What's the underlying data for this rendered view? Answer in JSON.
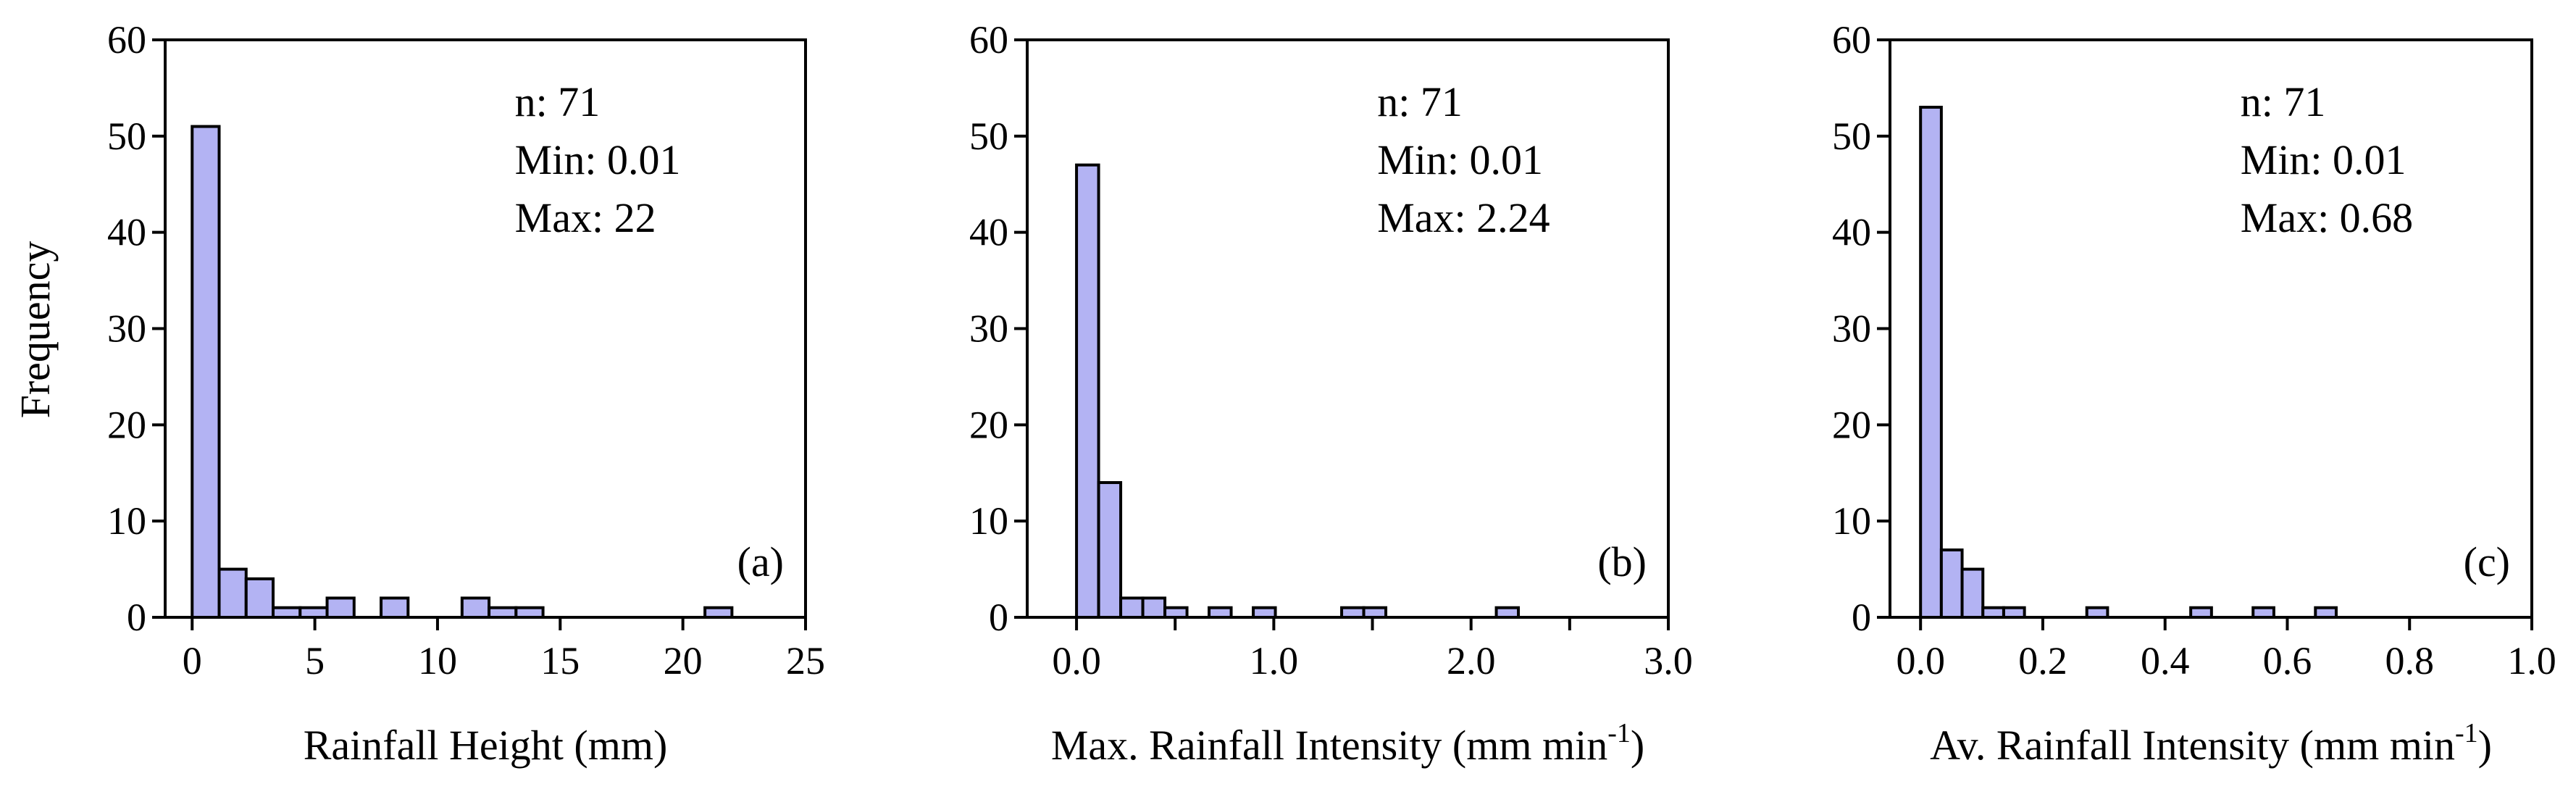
{
  "colors": {
    "bar_fill": "#b3b3f3",
    "bar_stroke": "#000000",
    "axis": "#000000"
  },
  "shared_ylabel": "Frequency",
  "chart_data": [
    {
      "type": "bar",
      "panel_label": "(a)",
      "xlabel": "Rainfall Height (mm)",
      "xlabel_superscript": "",
      "xlabel_suffix": "",
      "ylabel": "Frequency",
      "xlim": [
        -1.1,
        25
      ],
      "ylim": [
        0,
        60
      ],
      "xticks": [
        0,
        5,
        10,
        15,
        20,
        25
      ],
      "xtick_labels": [
        "0",
        "5",
        "10",
        "15",
        "20",
        "25"
      ],
      "yticks": [
        0,
        10,
        20,
        30,
        40,
        50,
        60
      ],
      "ytick_labels": [
        "0",
        "10",
        "20",
        "30",
        "40",
        "50",
        "60"
      ],
      "bin_width": 1.1,
      "bin_starts": [
        0,
        1.1,
        2.2,
        3.3,
        4.4,
        5.5,
        6.6,
        7.7,
        8.8,
        9.9,
        11.0,
        12.1,
        13.2,
        14.3,
        15.4,
        16.5,
        17.6,
        18.7,
        19.8,
        20.9
      ],
      "values": [
        51,
        5,
        4,
        1,
        1,
        2,
        0,
        2,
        0,
        0,
        2,
        1,
        1,
        0,
        0,
        0,
        0,
        0,
        0,
        1
      ],
      "stats": {
        "n": "n: 71",
        "min": "Min: 0.01",
        "max": "Max: 22"
      }
    },
    {
      "type": "bar",
      "panel_label": "(b)",
      "xlabel": "Max. Rainfall Intensity (mm min",
      "xlabel_superscript": "-1",
      "xlabel_suffix": ")",
      "ylabel": "",
      "xlim": [
        -0.25,
        3.0
      ],
      "ylim": [
        0,
        60
      ],
      "xticks": [
        0.0,
        1.0,
        2.0,
        3.0
      ],
      "xtick_labels": [
        "0.0",
        "1.0",
        "2.0",
        "3.0"
      ],
      "minor_xticks": [
        0.5,
        1.5,
        2.5
      ],
      "yticks": [
        0,
        10,
        20,
        30,
        40,
        50,
        60
      ],
      "ytick_labels": [
        "0",
        "10",
        "20",
        "30",
        "40",
        "50",
        "60"
      ],
      "bin_width": 0.112,
      "bin_starts": [
        0.0,
        0.112,
        0.224,
        0.336,
        0.448,
        0.56,
        0.672,
        0.784,
        0.896,
        1.008,
        1.12,
        1.232,
        1.344,
        1.456,
        1.568,
        1.68,
        1.792,
        1.904,
        2.016,
        2.128
      ],
      "values": [
        47,
        14,
        2,
        2,
        1,
        0,
        1,
        0,
        1,
        0,
        0,
        0,
        1,
        1,
        0,
        0,
        0,
        0,
        0,
        1
      ],
      "stats": {
        "n": "n: 71",
        "min": "Min: 0.01",
        "max": "Max: 2.24"
      }
    },
    {
      "type": "bar",
      "panel_label": "(c)",
      "xlabel": "Av. Rainfall Intensity (mm min",
      "xlabel_superscript": "-1",
      "xlabel_suffix": ")",
      "ylabel": "",
      "xlim": [
        -0.05,
        1.0
      ],
      "ylim": [
        0,
        60
      ],
      "xticks": [
        0.0,
        0.2,
        0.4,
        0.6,
        0.8,
        1.0
      ],
      "xtick_labels": [
        "0.0",
        "0.2",
        "0.4",
        "0.6",
        "0.8",
        "1.0"
      ],
      "yticks": [
        0,
        10,
        20,
        30,
        40,
        50,
        60
      ],
      "ytick_labels": [
        "0",
        "10",
        "20",
        "30",
        "40",
        "50",
        "60"
      ],
      "bin_width": 0.034,
      "bin_starts": [
        0.0,
        0.034,
        0.068,
        0.102,
        0.136,
        0.17,
        0.204,
        0.238,
        0.272,
        0.306,
        0.34,
        0.374,
        0.408,
        0.442,
        0.476,
        0.51,
        0.544,
        0.578,
        0.612,
        0.646
      ],
      "values": [
        53,
        7,
        5,
        1,
        1,
        0,
        0,
        0,
        1,
        0,
        0,
        0,
        0,
        1,
        0,
        0,
        1,
        0,
        0,
        1
      ],
      "stats": {
        "n": "n: 71",
        "min": "Min: 0.01",
        "max": "Max: 0.68"
      }
    }
  ]
}
